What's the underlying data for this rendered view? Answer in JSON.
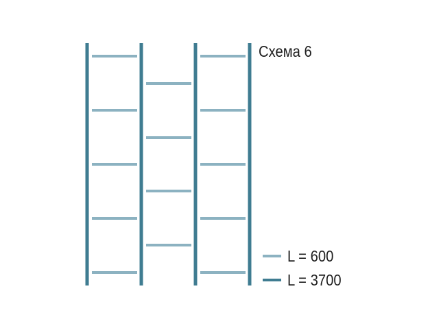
{
  "title": "Схема 6",
  "colors": {
    "long_profile": "#3f7c91",
    "short_profile": "#8cb2c1"
  },
  "legend": [
    {
      "label": "L = 600",
      "color": "#8cb2c1"
    },
    {
      "label": "L = 3700",
      "color": "#3f7c91"
    }
  ]
}
